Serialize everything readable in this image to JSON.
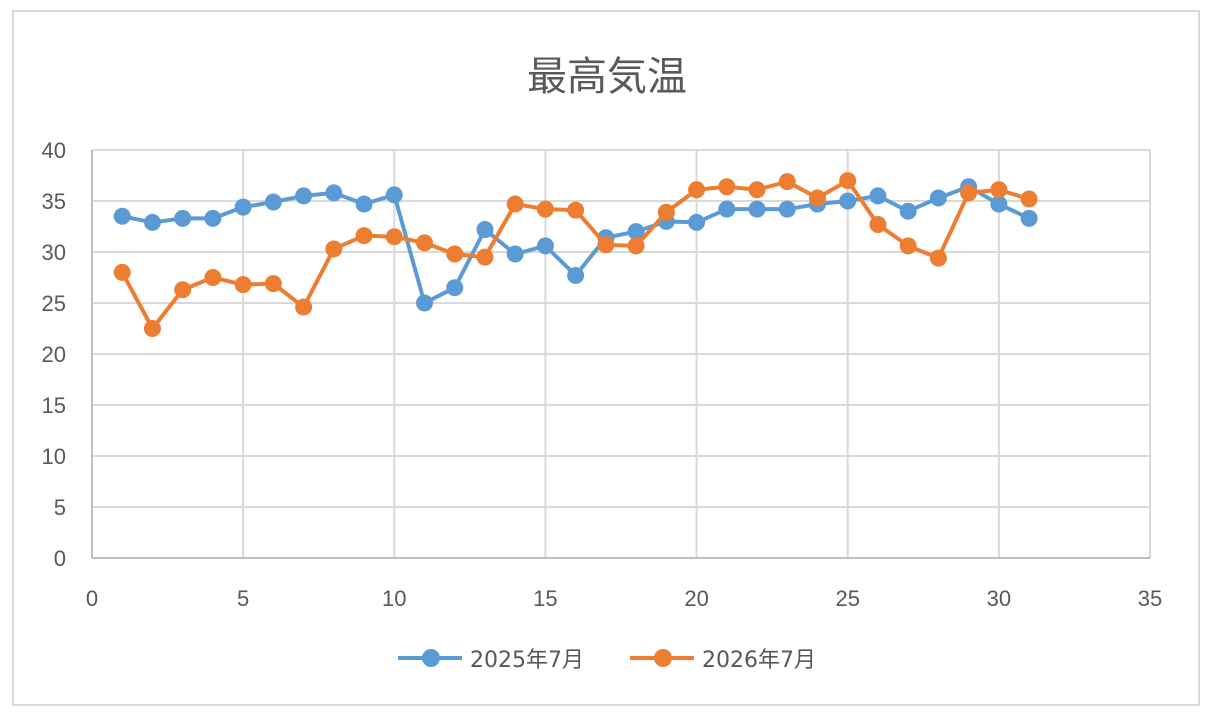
{
  "chart_data": {
    "type": "line",
    "title": "最高気温",
    "xlabel": "",
    "ylabel": "",
    "xlim": [
      0,
      35
    ],
    "ylim": [
      0,
      40
    ],
    "x_ticks": [
      0,
      5,
      10,
      15,
      20,
      25,
      30,
      35
    ],
    "y_ticks": [
      0,
      5,
      10,
      15,
      20,
      25,
      30,
      35,
      40
    ],
    "grid": true,
    "legend_position": "bottom",
    "x": [
      1,
      2,
      3,
      4,
      5,
      6,
      7,
      8,
      9,
      10,
      11,
      12,
      13,
      14,
      15,
      16,
      17,
      18,
      19,
      20,
      21,
      22,
      23,
      24,
      25,
      26,
      27,
      28,
      29,
      30,
      31
    ],
    "series": [
      {
        "name": "2025年7月",
        "color": "#5b9bd5",
        "values": [
          33.5,
          32.9,
          33.3,
          33.3,
          34.4,
          34.9,
          35.5,
          35.8,
          34.7,
          35.6,
          25.0,
          26.5,
          32.2,
          29.8,
          30.6,
          27.7,
          31.4,
          32.0,
          33.0,
          32.9,
          34.2,
          34.2,
          34.2,
          34.7,
          35.0,
          35.5,
          34.0,
          35.3,
          36.4,
          34.7,
          33.3
        ]
      },
      {
        "name": "2026年7月",
        "color": "#ed7d31",
        "values": [
          28.0,
          22.5,
          26.3,
          27.5,
          26.8,
          26.9,
          24.6,
          30.3,
          31.6,
          31.5,
          30.9,
          29.8,
          29.5,
          34.7,
          34.2,
          34.1,
          30.7,
          30.6,
          33.9,
          36.1,
          36.4,
          36.1,
          36.9,
          35.3,
          37.0,
          32.7,
          30.6,
          29.4,
          35.8,
          36.1,
          35.2
        ]
      }
    ]
  }
}
